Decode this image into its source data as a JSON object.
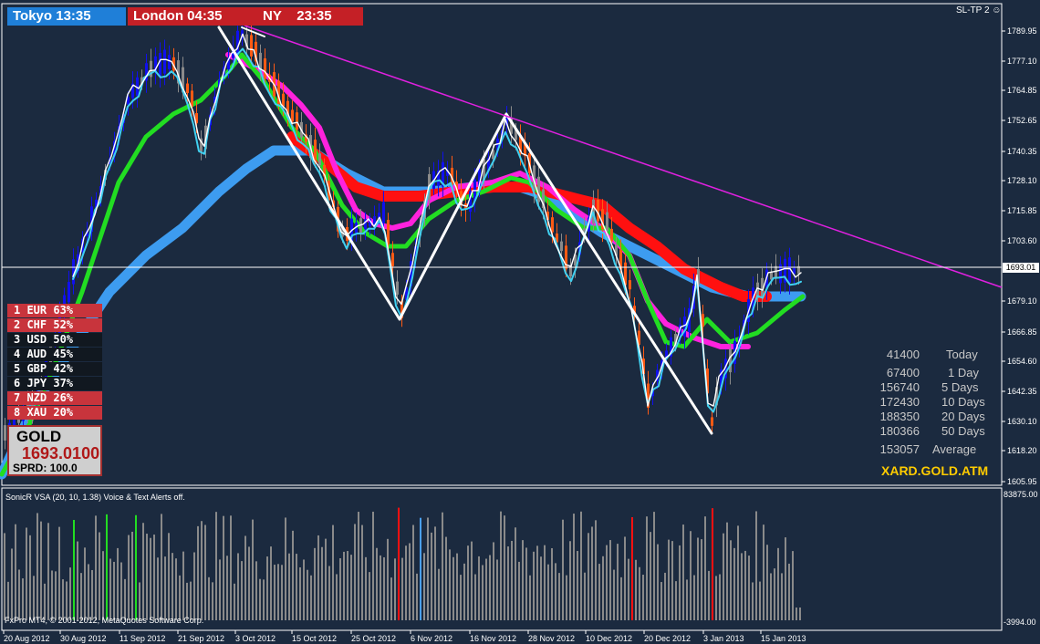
{
  "sessions": {
    "tokyo": "Tokyo 13:35",
    "london": "London 04:35",
    "ny": "NY    23:35"
  },
  "indicator_tag": "SL-TP 2",
  "currency_strength": [
    {
      "label": "1 EUR 63%",
      "style": "red"
    },
    {
      "label": "2 CHF 52%",
      "style": "red"
    },
    {
      "label": "3 USD 50%",
      "style": "black"
    },
    {
      "label": "4 AUD 45%",
      "style": "black"
    },
    {
      "label": "5 GBP 42%",
      "style": "black"
    },
    {
      "label": "6 JPY 37%",
      "style": "black"
    },
    {
      "label": "7 NZD 26%",
      "style": "red"
    },
    {
      "label": "8 XAU 20%",
      "style": "red"
    }
  ],
  "symbol_box": {
    "name": "GOLD",
    "price": "1693.0100",
    "spread": "SPRD: 100.0"
  },
  "volume_stats": [
    {
      "value": "41400",
      "label": "Today"
    },
    {
      "value": "67400",
      "label": "1 Day"
    },
    {
      "value": "156740",
      "label": "5 Days"
    },
    {
      "value": "172430",
      "label": "10 Days"
    },
    {
      "value": "188350",
      "label": "20 Days"
    },
    {
      "value": "180366",
      "label": "50 Days"
    },
    {
      "value": "153057",
      "label": "Average"
    }
  ],
  "brand": "XARD.GOLD.ATM",
  "current_price_label": "1693.01",
  "price_axis": [
    "1789.95",
    "1777.10",
    "1764.85",
    "1752.65",
    "1740.35",
    "1728.10",
    "1715.85",
    "1703.60",
    "1679.10",
    "1666.85",
    "1654.60",
    "1642.35",
    "1630.10",
    "1618.20",
    "1605.95"
  ],
  "indicator_header": "SonicR VSA  (20, 10, 1.38)   Voice & Text Alerts off.",
  "indicator_axis": {
    "top": "83875.00",
    "bottom": "-3994.00"
  },
  "date_axis": [
    "20 Aug 2012",
    "30 Aug 2012",
    "11 Sep 2012",
    "21 Sep 2012",
    "3 Oct 2012",
    "15 Oct 2012",
    "25 Oct 2012",
    "6 Nov 2012",
    "16 Nov 2012",
    "28 Nov 2012",
    "10 Dec 2012",
    "20 Dec 2012",
    "3 Jan 2013",
    "15 Jan 2013"
  ],
  "copyright": "FxPro MT4, © 2001-2012, MetaQuotes Software Corp.",
  "colors": {
    "background": "#1b2a3f",
    "bull": "#1010ee",
    "bear": "#ff5a14",
    "neutral": "#8a8a8a",
    "ema_fast": "#22dd22",
    "ema_red": "#ff1010",
    "ema_magenta": "#ff22dd",
    "ema_slow": "#3d9cf0",
    "trendline": "#e020e0",
    "zigzag": "#ffffff"
  }
}
